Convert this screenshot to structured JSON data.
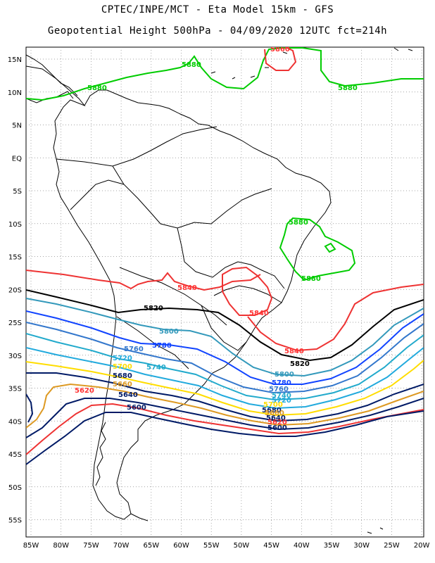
{
  "header": {
    "line1": "CPTEC/INPE/MCT -  Eta Model 15km - GFS",
    "line2": "Geopotential Height 500hPa - 04/09/2020 12UTC fct=214h"
  },
  "axes": {
    "lat_labels": [
      "15N",
      "10N",
      "5N",
      "EQ",
      "5S",
      "10S",
      "15S",
      "20S",
      "25S",
      "30S",
      "35S",
      "40S",
      "45S",
      "50S",
      "55S"
    ],
    "lon_labels": [
      "85W",
      "80W",
      "75W",
      "70W",
      "65W",
      "60W",
      "55W",
      "50W",
      "45W",
      "40W",
      "35W",
      "30W",
      "25W",
      "20W"
    ]
  },
  "contour_labels": [
    {
      "id": "g5880a",
      "text": "5880",
      "color": "#00cc00"
    },
    {
      "id": "g5880b",
      "text": "5880",
      "color": "#00cc00"
    },
    {
      "id": "g5880c",
      "text": "5880",
      "color": "#00cc00"
    },
    {
      "id": "g5880d",
      "text": "5880",
      "color": "#00cc00"
    },
    {
      "id": "g5880e",
      "text": "5880",
      "color": "#00cc00"
    },
    {
      "id": "r5860a",
      "text": "5860",
      "color": "#ff3333"
    },
    {
      "id": "r5840a",
      "text": "5840",
      "color": "#ff3333"
    },
    {
      "id": "r5840b",
      "text": "5840",
      "color": "#ff3333"
    },
    {
      "id": "r5840c",
      "text": "5840",
      "color": "#ff3333"
    },
    {
      "id": "k5820a",
      "text": "5820",
      "color": "#000000"
    },
    {
      "id": "k5820b",
      "text": "5820",
      "color": "#000000"
    },
    {
      "id": "c5800a",
      "text": "5800",
      "color": "#3399bb"
    },
    {
      "id": "c5800b",
      "text": "5800",
      "color": "#3399bb"
    },
    {
      "id": "b5780a",
      "text": "5780",
      "color": "#1144ff"
    },
    {
      "id": "b5780b",
      "text": "5780",
      "color": "#1144ff"
    },
    {
      "id": "c5760a",
      "text": "5760",
      "color": "#3377cc"
    },
    {
      "id": "c5760b",
      "text": "5760",
      "color": "#3377cc"
    },
    {
      "id": "c5740a",
      "text": "5740",
      "color": "#22aacc"
    },
    {
      "id": "c5740b",
      "text": "5740",
      "color": "#22aacc"
    },
    {
      "id": "c5720a",
      "text": "5720",
      "color": "#22aadd"
    },
    {
      "id": "c5720b",
      "text": "5720",
      "color": "#22aadd"
    },
    {
      "id": "y5700a",
      "text": "5700",
      "color": "#ffdd00"
    },
    {
      "id": "y5700b",
      "text": "5700",
      "color": "#ffdd00"
    },
    {
      "id": "n5680a",
      "text": "5680",
      "color": "#001a66"
    },
    {
      "id": "n5680b",
      "text": "5680",
      "color": "#001a66"
    },
    {
      "id": "o5660a",
      "text": "5660",
      "color": "#dd9922"
    },
    {
      "id": "o5660b",
      "text": "5660",
      "color": "#dd9922"
    },
    {
      "id": "n5640a",
      "text": "5640",
      "color": "#001a66"
    },
    {
      "id": "n5640b",
      "text": "5640",
      "color": "#001a66"
    },
    {
      "id": "r5620a",
      "text": "5620",
      "color": "#ff3333"
    },
    {
      "id": "r5620b",
      "text": "5620",
      "color": "#ff3333"
    },
    {
      "id": "n5600a",
      "text": "5600",
      "color": "#001a66"
    },
    {
      "id": "n5600b",
      "text": "5600",
      "color": "#001a66"
    }
  ]
}
